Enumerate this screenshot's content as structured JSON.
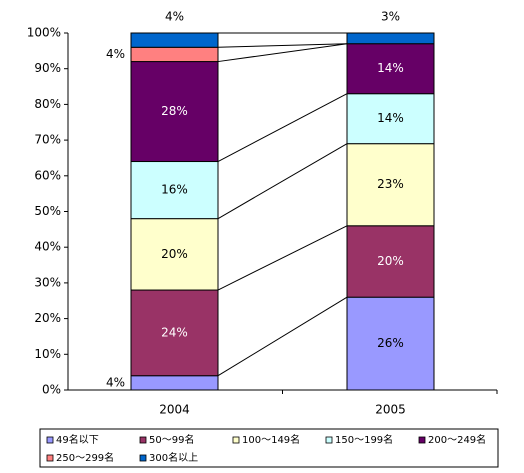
{
  "chart_data": {
    "type": "stacked-bar-100",
    "categories": [
      "2004",
      "2005"
    ],
    "ylim": [
      0,
      100
    ],
    "yticks": [
      {
        "value": 0,
        "label": "0%"
      },
      {
        "value": 10,
        "label": "10%"
      },
      {
        "value": 20,
        "label": "20%"
      },
      {
        "value": 30,
        "label": "30%"
      },
      {
        "value": 40,
        "label": "40%"
      },
      {
        "value": 50,
        "label": "50%"
      },
      {
        "value": 60,
        "label": "60%"
      },
      {
        "value": 70,
        "label": "70%"
      },
      {
        "value": 80,
        "label": "80%"
      },
      {
        "value": 90,
        "label": "90%"
      },
      {
        "value": 100,
        "label": "100%"
      }
    ],
    "series": [
      {
        "name": "49名以下",
        "color": "#9999ff",
        "values": [
          4,
          26
        ],
        "value_labels": [
          "4%",
          "26%"
        ]
      },
      {
        "name": "50～99名",
        "color": "#993366",
        "values": [
          24,
          20
        ],
        "value_labels": [
          "24%",
          "20%"
        ]
      },
      {
        "name": "100～149名",
        "color": "#ffffcc",
        "values": [
          20,
          23
        ],
        "value_labels": [
          "20%",
          "23%"
        ]
      },
      {
        "name": "150～199名",
        "color": "#ccffff",
        "values": [
          16,
          14
        ],
        "value_labels": [
          "16%",
          "14%"
        ]
      },
      {
        "name": "200～249名",
        "color": "#660066",
        "values": [
          28,
          14
        ],
        "value_labels": [
          "28%",
          "14%"
        ]
      },
      {
        "name": "250～299名",
        "color": "#ff8080",
        "values": [
          4,
          0
        ],
        "value_labels": [
          "4%",
          null
        ]
      },
      {
        "name": "300名以上",
        "color": "#0066cc",
        "values": [
          4,
          3
        ],
        "value_labels": [
          "4%",
          "3%"
        ]
      }
    ]
  }
}
